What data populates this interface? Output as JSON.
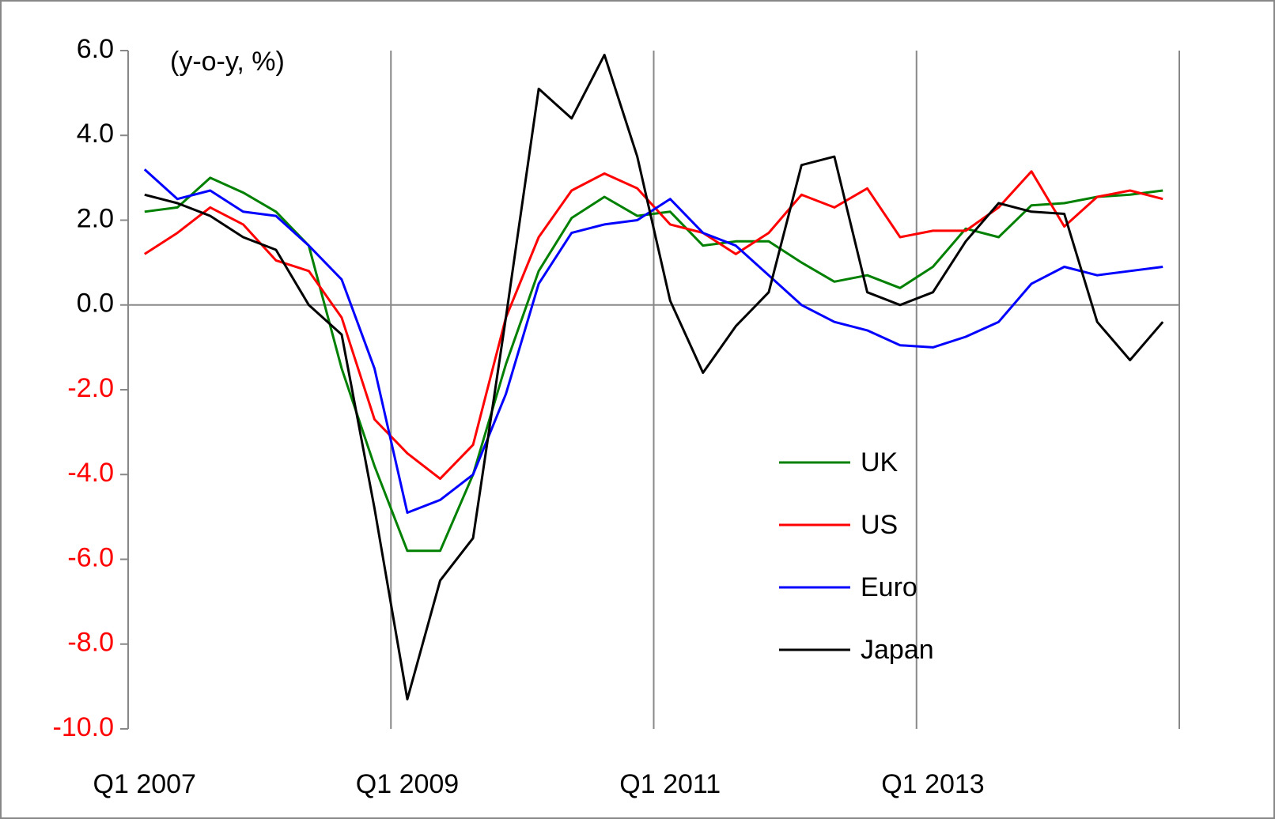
{
  "chart_data": {
    "type": "line",
    "annotation": "(y-o-y, %)",
    "categories": [
      "Q1 2007",
      null,
      null,
      null,
      null,
      null,
      null,
      null,
      "Q1 2009",
      null,
      null,
      null,
      null,
      null,
      null,
      null,
      "Q1 2011",
      null,
      null,
      null,
      null,
      null,
      null,
      null,
      "Q1 2013",
      null,
      null,
      null,
      null,
      null,
      null,
      null
    ],
    "series": [
      {
        "name": "UK",
        "color": "#008000",
        "values": [
          2.2,
          2.3,
          3.0,
          2.65,
          2.2,
          1.4,
          -1.5,
          -3.8,
          -5.8,
          -5.8,
          -4.0,
          -1.4,
          0.8,
          2.05,
          2.55,
          2.1,
          2.2,
          1.4,
          1.5,
          1.5,
          1.0,
          0.55,
          0.7,
          0.4,
          0.9,
          1.8,
          1.6,
          2.35,
          2.4,
          2.55,
          2.6,
          2.7
        ]
      },
      {
        "name": "US",
        "color": "#ff0000",
        "values": [
          1.2,
          1.7,
          2.3,
          1.9,
          1.05,
          0.8,
          -0.3,
          -2.7,
          -3.5,
          -4.1,
          -3.3,
          -0.3,
          1.6,
          2.7,
          3.1,
          2.75,
          1.9,
          1.7,
          1.2,
          1.7,
          2.6,
          2.3,
          2.75,
          1.6,
          1.75,
          1.75,
          2.3,
          3.15,
          1.85,
          2.55,
          2.7,
          2.5
        ]
      },
      {
        "name": "Euro",
        "color": "#0000ff",
        "values": [
          3.2,
          2.5,
          2.7,
          2.2,
          2.1,
          1.4,
          0.6,
          -1.5,
          -4.9,
          -4.6,
          -4.0,
          -2.1,
          0.5,
          1.7,
          1.9,
          2.0,
          2.5,
          1.7,
          1.4,
          0.7,
          0.0,
          -0.4,
          -0.6,
          -0.95,
          -1.0,
          -0.75,
          -0.4,
          0.5,
          0.9,
          0.7,
          0.8,
          0.9
        ]
      },
      {
        "name": "Japan",
        "color": "#000000",
        "values": [
          2.6,
          2.4,
          2.1,
          1.6,
          1.3,
          0.0,
          -0.7,
          -4.8,
          -9.3,
          -6.5,
          -5.5,
          -0.3,
          5.1,
          4.4,
          5.9,
          3.5,
          0.1,
          -1.6,
          -0.5,
          0.3,
          3.3,
          3.5,
          0.3,
          0.0,
          0.3,
          1.5,
          2.4,
          2.2,
          2.15,
          -0.4,
          -1.3,
          -0.4
        ]
      }
    ],
    "ylim": [
      -10,
      6
    ],
    "yticks": [
      {
        "value": 6,
        "label": "6.0"
      },
      {
        "value": 4,
        "label": "4.0"
      },
      {
        "value": 2,
        "label": "2.0"
      },
      {
        "value": 0,
        "label": "0.0"
      },
      {
        "value": -2,
        "label": "-2.0"
      },
      {
        "value": -4,
        "label": "-4.0"
      },
      {
        "value": -6,
        "label": "-6.0"
      },
      {
        "value": -8,
        "label": "-8.0"
      },
      {
        "value": -10,
        "label": "-10.0"
      }
    ],
    "negative_tick_label_color": "#ff0000",
    "xgrid": true,
    "legend": "right"
  }
}
